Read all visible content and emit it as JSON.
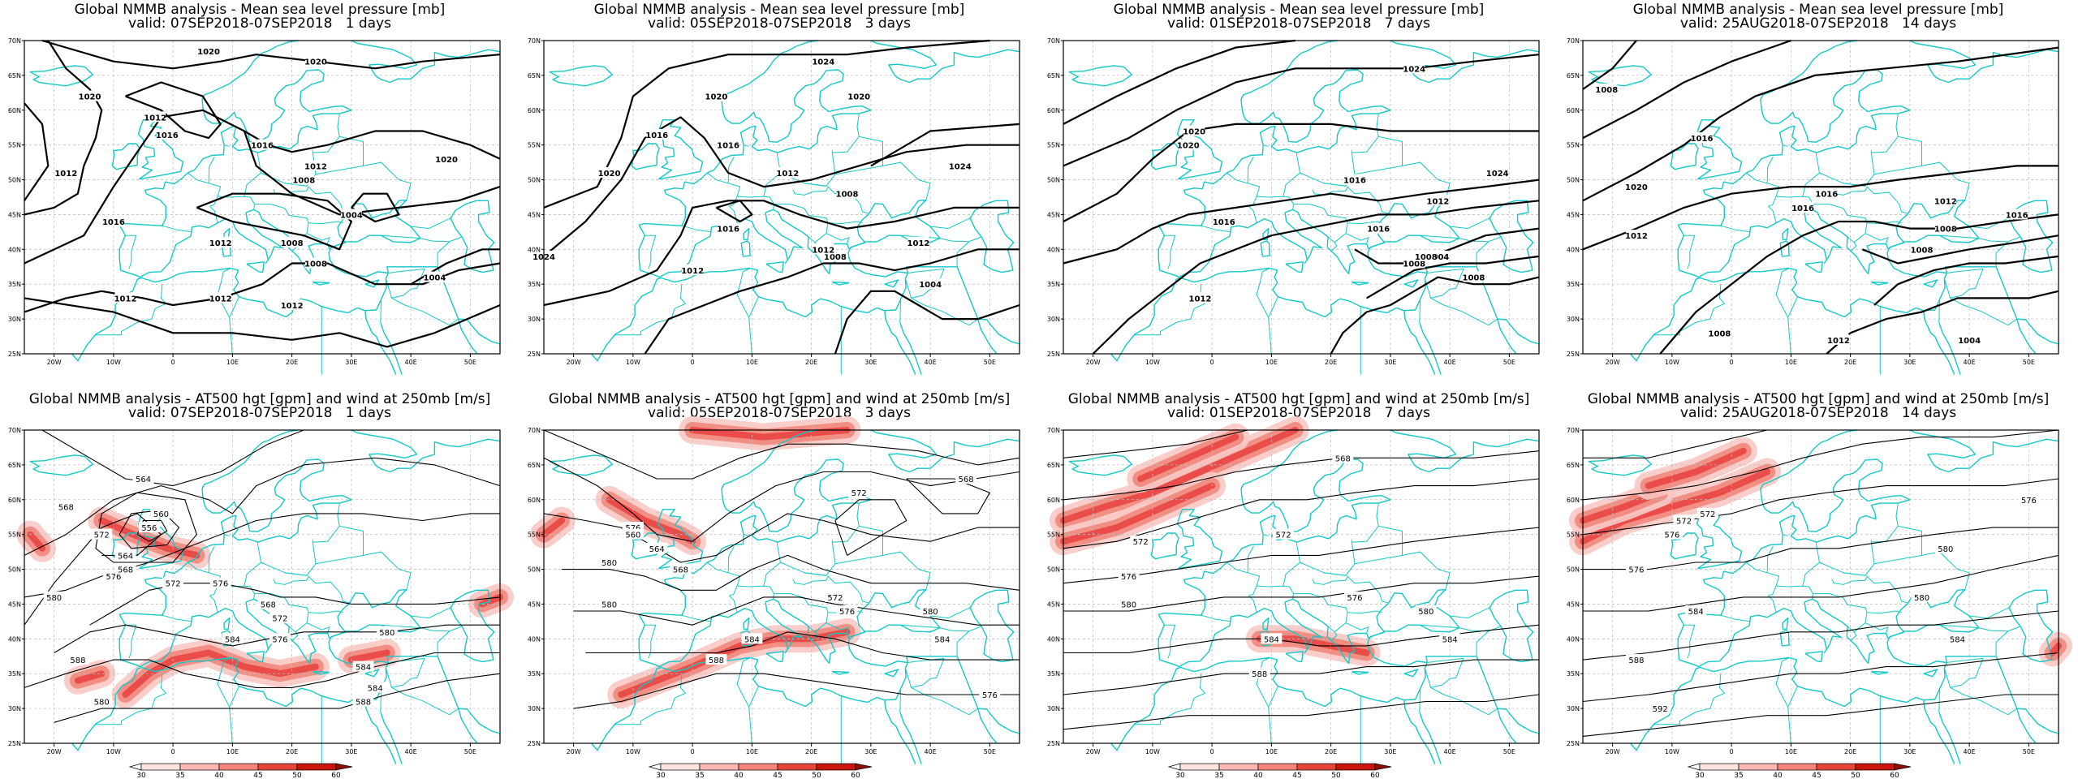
{
  "panels": [
    {
      "title_line1": "Global NMMB analysis - Mean sea level pressure [mb]",
      "title_line2": "valid: 07SEP2018-07SEP2018   1 days",
      "kind": "mslp"
    },
    {
      "title_line1": "Global NMMB analysis - Mean sea level pressure [mb]",
      "title_line2": "valid: 05SEP2018-07SEP2018   3 days",
      "kind": "mslp"
    },
    {
      "title_line1": "Global NMMB analysis - Mean sea level pressure [mb]",
      "title_line2": "valid: 01SEP2018-07SEP2018   7 days",
      "kind": "mslp"
    },
    {
      "title_line1": "Global NMMB analysis - Mean sea level pressure [mb]",
      "title_line2": "valid: 25AUG2018-07SEP2018   14 days",
      "kind": "mslp"
    },
    {
      "title_line1": "Global NMMB analysis - AT500 hgt [gpm] and wind at 250mb [m/s]",
      "title_line2": "valid: 07SEP2018-07SEP2018   1 days",
      "kind": "z500"
    },
    {
      "title_line1": "Global NMMB analysis - AT500 hgt [gpm] and wind at 250mb [m/s]",
      "title_line2": "valid: 05SEP2018-07SEP2018   3 days",
      "kind": "z500"
    },
    {
      "title_line1": "Global NMMB analysis - AT500 hgt [gpm] and wind at 250mb [m/s]",
      "title_line2": "valid: 01SEP2018-07SEP2018   7 days",
      "kind": "z500"
    },
    {
      "title_line1": "Global NMMB analysis - AT500 hgt [gpm] and wind at 250mb [m/s]",
      "title_line2": "valid: 25AUG2018-07SEP2018   14 days",
      "kind": "z500"
    }
  ],
  "lon_ticks": [
    "20W",
    "10W",
    "0",
    "10E",
    "20E",
    "30E",
    "40E",
    "50E"
  ],
  "lat_ticks": [
    "70N",
    "65N",
    "60N",
    "55N",
    "50N",
    "45N",
    "40N",
    "35N",
    "30N",
    "25N"
  ],
  "mslp_labels": [
    [
      "1020",
      "1020",
      "1012",
      "1016",
      "1012",
      "1020",
      "1016",
      "1012",
      "1008",
      "1004",
      "1016",
      "1012",
      "1008",
      "1012",
      "1012",
      "1012",
      "1004",
      "1020",
      "1008"
    ],
    [
      "1020",
      "1024",
      "1016",
      "1016",
      "1020",
      "1012",
      "1024",
      "1016",
      "1008",
      "1012",
      "1024",
      "1012",
      "1008",
      "1012",
      "1004",
      "1020"
    ],
    [
      "1020",
      "1024",
      "1020",
      "1016",
      "1024",
      "1016",
      "1012",
      "1008",
      "1004",
      "1008",
      "1012",
      "1016",
      "1008"
    ],
    [
      "1008",
      "1016",
      "1020",
      "1016",
      "1012",
      "1016",
      "1012",
      "1008",
      "1008",
      "1004",
      "1012",
      "1008",
      "1016"
    ]
  ],
  "z500_labels": [
    [
      "564",
      "568",
      "572",
      "576",
      "556",
      "560",
      "564",
      "568",
      "572",
      "576",
      "580",
      "584",
      "588",
      "568",
      "572",
      "576",
      "580",
      "584",
      "580",
      "584",
      "588"
    ],
    [
      "568",
      "572",
      "576",
      "580",
      "560",
      "564",
      "568",
      "572",
      "576",
      "580",
      "584",
      "588",
      "576",
      "580",
      "584"
    ],
    [
      "568",
      "572",
      "576",
      "580",
      "572",
      "576",
      "580",
      "584",
      "588",
      "584"
    ],
    [
      "572",
      "576",
      "572",
      "576",
      "580",
      "584",
      "588",
      "592",
      "576",
      "580",
      "584"
    ]
  ],
  "colorbar": {
    "labels": [
      "30",
      "35",
      "40",
      "45",
      "50",
      "60"
    ],
    "colors": [
      "#ffffff",
      "#fde3e1",
      "#fbb8b2",
      "#f5857b",
      "#e8453a",
      "#c9160e",
      "#8f0d08"
    ]
  },
  "colors": {
    "coast": "#13c8c8",
    "contour": "#000000",
    "grid": "#bfbfbf",
    "jet": "#e53535"
  }
}
